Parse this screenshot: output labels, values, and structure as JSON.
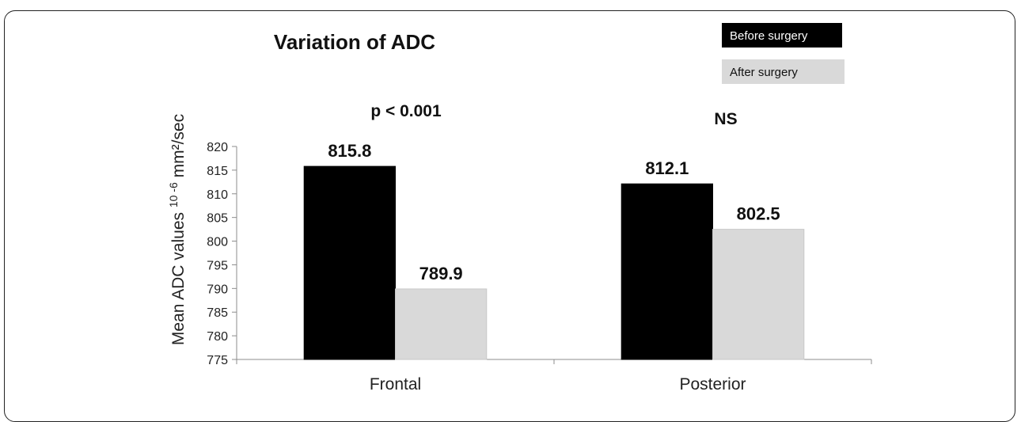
{
  "chart_data": {
    "type": "bar",
    "title": "Variation of ADC",
    "ylabel": {
      "prefix": "Mean ADC values ",
      "superscript": "10 -6",
      "suffix": " mm²/sec"
    },
    "ylim": [
      775,
      820
    ],
    "yticks": [
      775,
      780,
      785,
      790,
      795,
      800,
      805,
      810,
      815,
      820
    ],
    "categories": [
      "Frontal",
      "Posterior"
    ],
    "series": [
      {
        "name": "Before surgery",
        "color": "#000000",
        "values": [
          815.8,
          812.1
        ]
      },
      {
        "name": "After surgery",
        "color": "#d9d9d9",
        "values": [
          789.9,
          802.5
        ]
      }
    ],
    "data_labels": [
      [
        "815.8",
        "789.9"
      ],
      [
        "812.1",
        "802.5"
      ]
    ],
    "annotations": [
      "p < 0.001",
      "NS"
    ],
    "legend_position": "top-right",
    "grid": false
  }
}
